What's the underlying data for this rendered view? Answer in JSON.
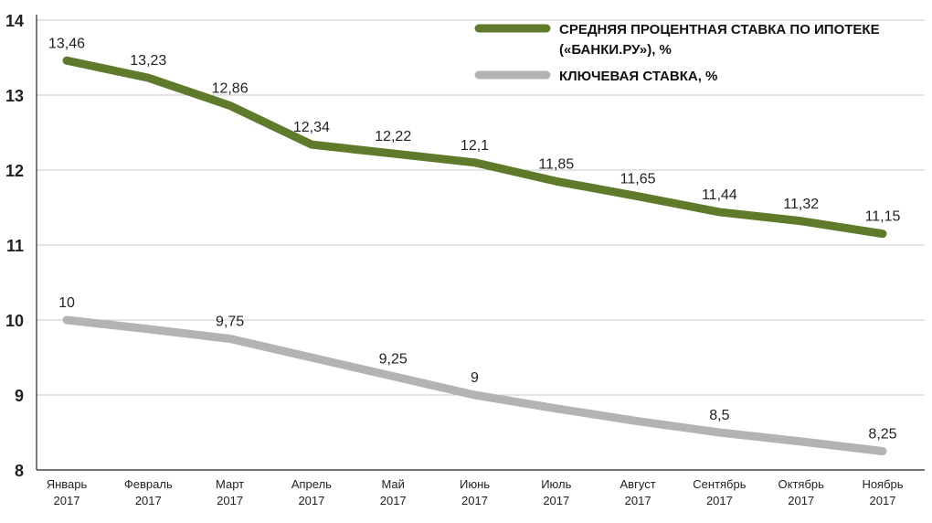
{
  "chart_data": {
    "type": "line",
    "title": "",
    "xlabel": "",
    "ylabel": "",
    "ylim": [
      8,
      14
    ],
    "yticks": [
      8,
      9,
      10,
      11,
      12,
      13,
      14
    ],
    "grid": true,
    "legend_position": "top-right",
    "categories": [
      {
        "month": "Январь",
        "year": "2017"
      },
      {
        "month": "Февраль",
        "year": "2017"
      },
      {
        "month": "Март",
        "year": "2017"
      },
      {
        "month": "Апрель",
        "year": "2017"
      },
      {
        "month": "Май",
        "year": "2017"
      },
      {
        "month": "Июнь",
        "year": "2017"
      },
      {
        "month": "Июль",
        "year": "2017"
      },
      {
        "month": "Август",
        "year": "2017"
      },
      {
        "month": "Сентябрь",
        "year": "2017"
      },
      {
        "month": "Октябрь",
        "year": "2017"
      },
      {
        "month": "Ноябрь",
        "year": "2017"
      }
    ],
    "series": [
      {
        "name_lines": [
          "СРЕДНЯЯ ПРОЦЕНТНАЯ СТАВКА ПО ИПОТЕКЕ",
          "(«БАНКИ.РУ»), %"
        ],
        "color": "#5e7a2a",
        "values": [
          13.46,
          13.23,
          12.86,
          12.34,
          12.22,
          12.1,
          11.85,
          11.65,
          11.44,
          11.32,
          11.15
        ],
        "labels": [
          "13,46",
          "13,23",
          "12,86",
          "12,34",
          "12,22",
          "12,1",
          "11,85",
          "11,65",
          "11,44",
          "11,32",
          "11,15"
        ]
      },
      {
        "name_lines": [
          "КЛЮЧЕВАЯ СТАВКА, %"
        ],
        "color": "#b3b3b3",
        "values": [
          10,
          9.88,
          9.75,
          9.5,
          9.25,
          9,
          8.82,
          8.65,
          8.5,
          8.38,
          8.25
        ],
        "labels": [
          "10",
          "",
          "9,75",
          "",
          "9,25",
          "9",
          "",
          "",
          "8,5",
          "",
          "8,25"
        ]
      }
    ]
  }
}
